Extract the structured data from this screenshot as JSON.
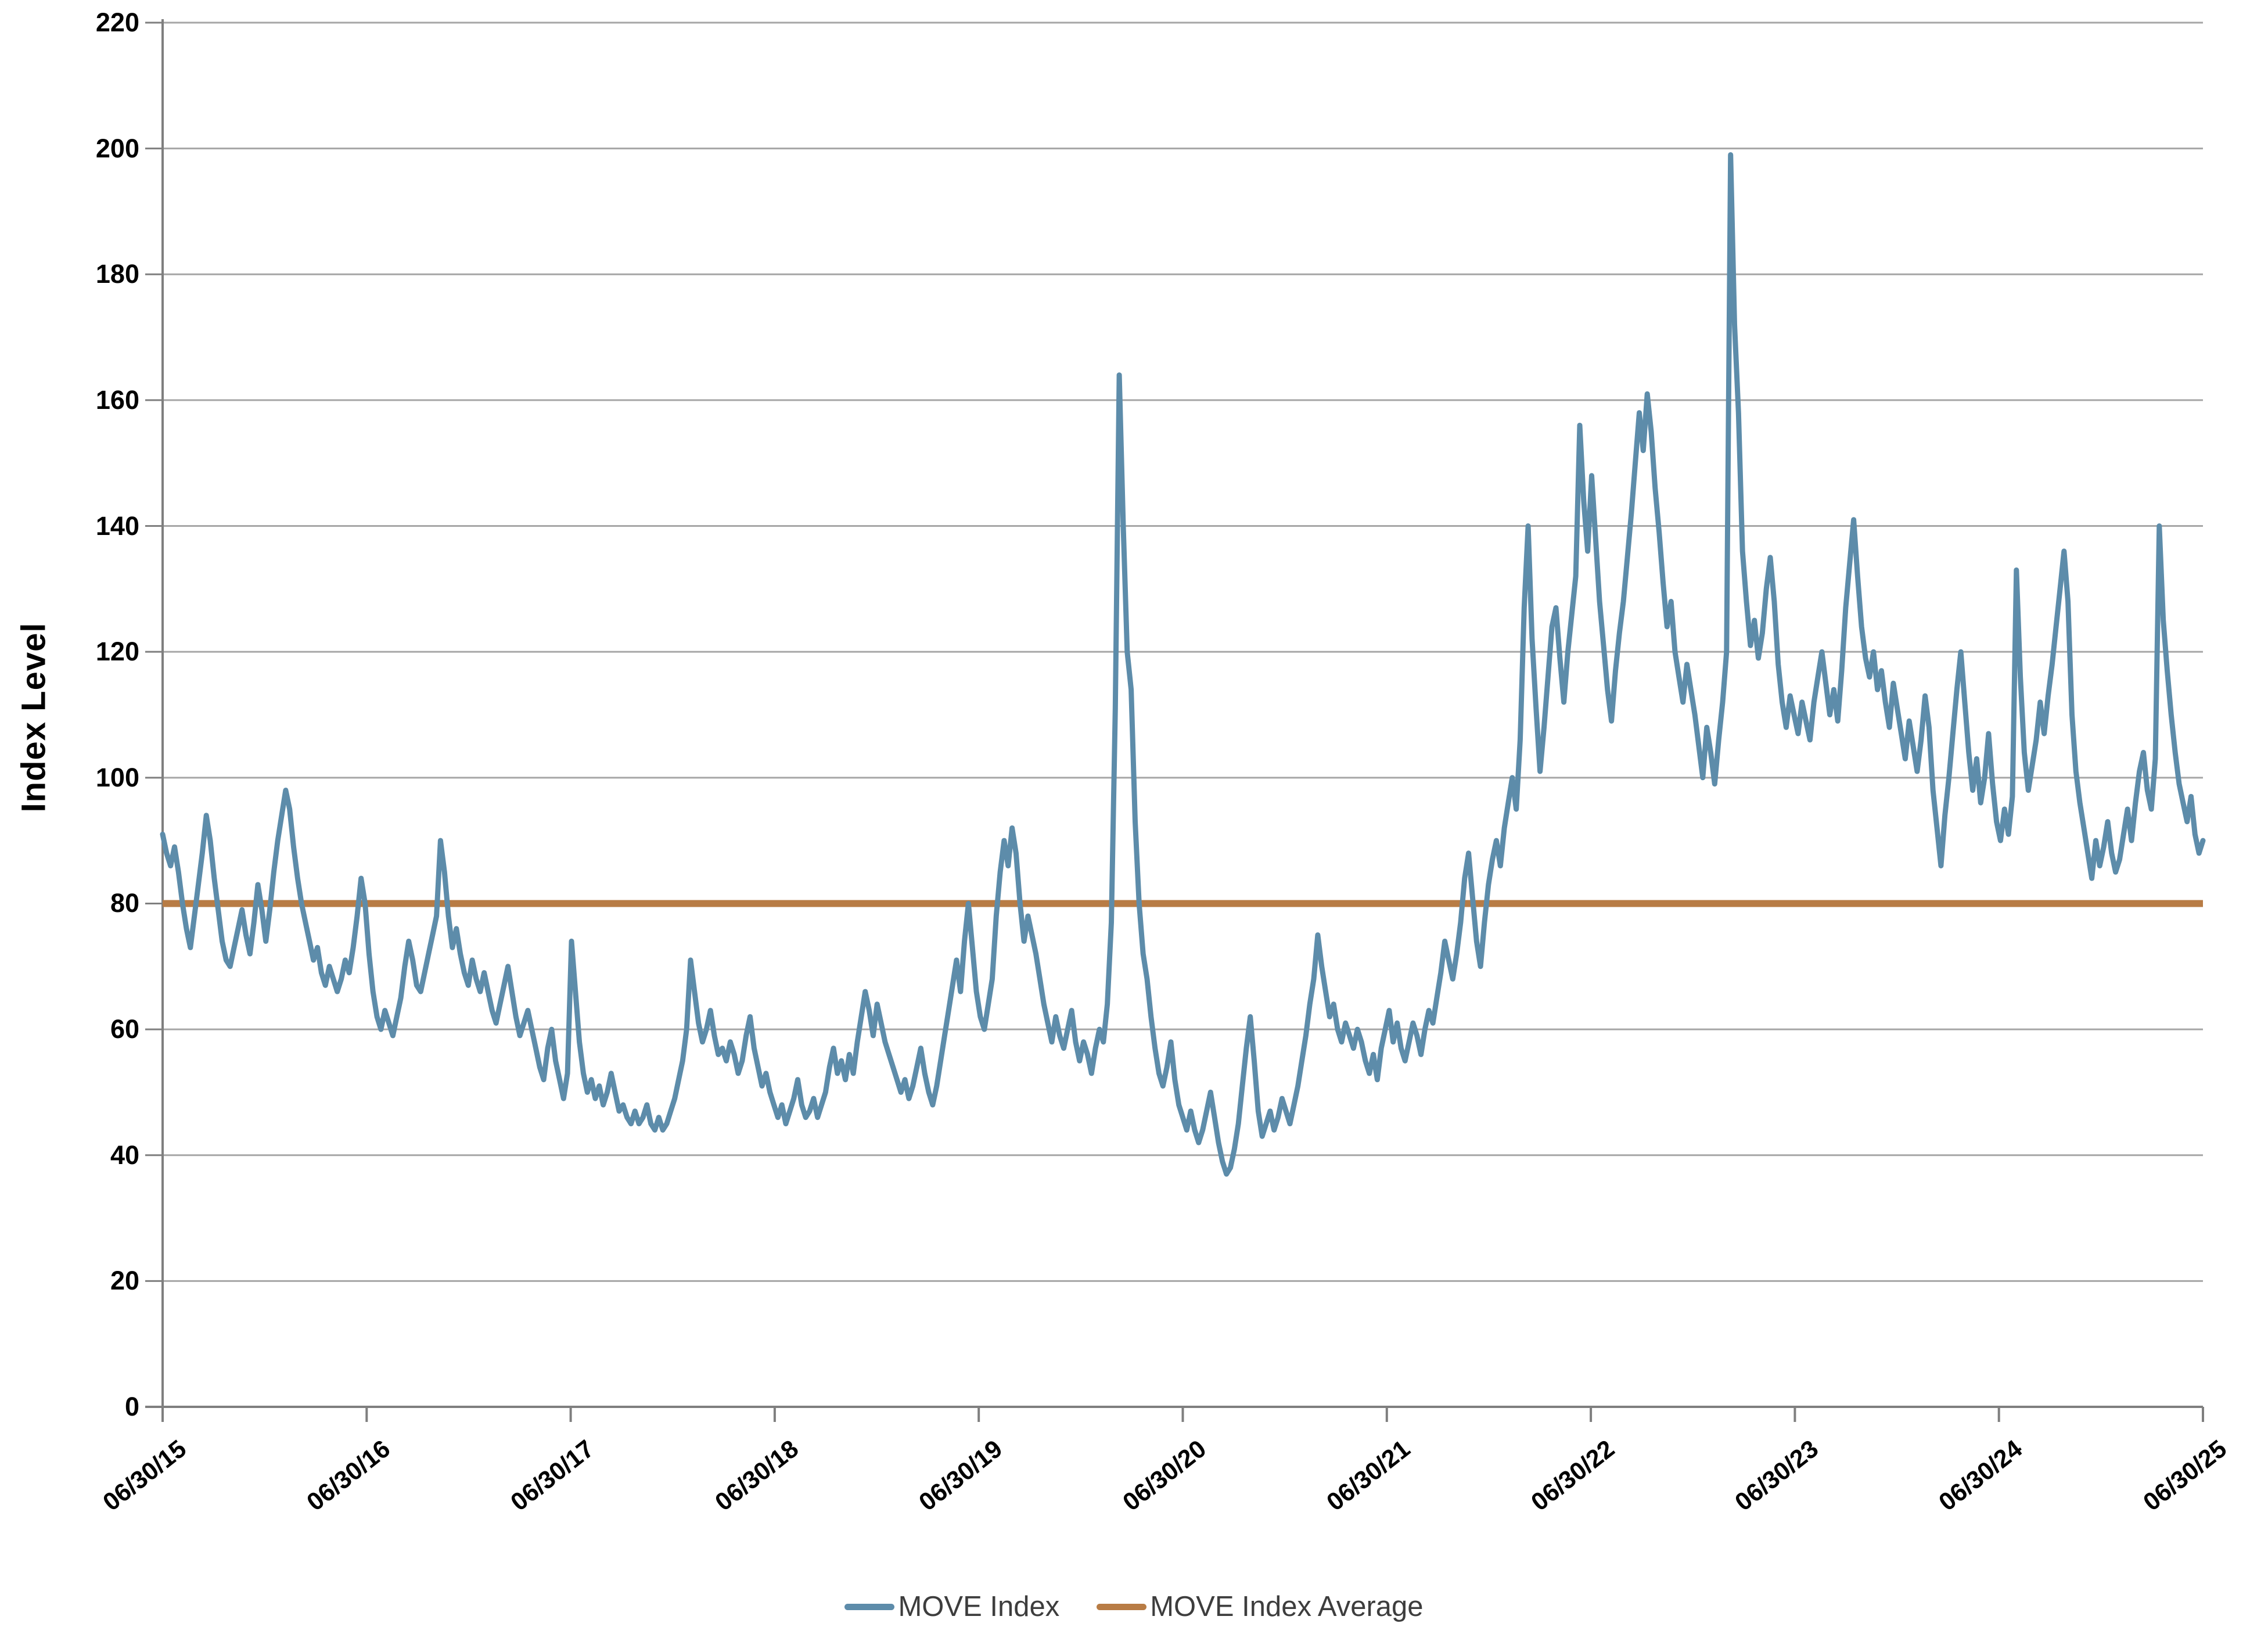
{
  "page": {
    "background": "#ffffff"
  },
  "axis_style": {
    "grid_color": "#a6a6a6",
    "axis_color": "#7f7f7f",
    "tick_color": "#7f7f7f",
    "label_color": "#000000"
  },
  "legend": {
    "items": [
      {
        "label": "MOVE Index",
        "color": "#5d8caa"
      },
      {
        "label": "MOVE Index Average",
        "color": "#b87c45"
      }
    ]
  },
  "chart_data": {
    "type": "line",
    "title": "",
    "xlabel": "",
    "ylabel": "Index Level",
    "ylim": [
      0,
      220
    ],
    "ytick_interval": 20,
    "y_tick_labels": [
      "0",
      "20",
      "40",
      "60",
      "80",
      "100",
      "120",
      "140",
      "160",
      "180",
      "200",
      "220"
    ],
    "x_tick_labels": [
      "06/30/15",
      "06/30/16",
      "06/30/17",
      "06/30/18",
      "06/30/19",
      "06/30/20",
      "06/30/21",
      "06/30/22",
      "06/30/23",
      "06/30/24",
      "06/30/25"
    ],
    "x_frequency": "weekly",
    "grid": "horizontal",
    "legend_position": "bottom",
    "series": [
      {
        "name": "MOVE Index",
        "color": "#5d8caa",
        "stroke_width": 9,
        "values": [
          91,
          88,
          86,
          89,
          85,
          80,
          76,
          73,
          78,
          83,
          88,
          94,
          90,
          84,
          79,
          74,
          71,
          70,
          73,
          76,
          79,
          75,
          72,
          77,
          83,
          79,
          74,
          79,
          85,
          90,
          94,
          98,
          95,
          89,
          84,
          80,
          77,
          74,
          71,
          73,
          69,
          67,
          70,
          68,
          66,
          68,
          71,
          69,
          73,
          78,
          84,
          80,
          72,
          66,
          62,
          60,
          63,
          61,
          59,
          62,
          65,
          70,
          74,
          71,
          67,
          66,
          69,
          72,
          75,
          78,
          90,
          85,
          78,
          73,
          76,
          72,
          69,
          67,
          71,
          68,
          66,
          69,
          66,
          63,
          61,
          64,
          67,
          70,
          66,
          62,
          59,
          61,
          63,
          60,
          57,
          54,
          52,
          57,
          60,
          55,
          52,
          49,
          53,
          74,
          66,
          58,
          53,
          50,
          52,
          49,
          51,
          48,
          50,
          53,
          50,
          47,
          48,
          46,
          45,
          47,
          45,
          46,
          48,
          45,
          44,
          46,
          44,
          45,
          47,
          49,
          52,
          55,
          60,
          71,
          66,
          61,
          58,
          60,
          63,
          59,
          56,
          57,
          55,
          58,
          56,
          53,
          55,
          59,
          62,
          57,
          54,
          51,
          53,
          50,
          48,
          46,
          48,
          45,
          47,
          49,
          52,
          48,
          46,
          47,
          49,
          46,
          48,
          50,
          54,
          57,
          53,
          55,
          52,
          56,
          53,
          58,
          62,
          66,
          63,
          59,
          64,
          61,
          58,
          56,
          54,
          52,
          50,
          52,
          49,
          51,
          54,
          57,
          53,
          50,
          48,
          51,
          55,
          59,
          63,
          67,
          71,
          66,
          74,
          80,
          73,
          66,
          62,
          60,
          64,
          68,
          78,
          85,
          90,
          86,
          92,
          88,
          80,
          74,
          78,
          75,
          72,
          68,
          64,
          61,
          58,
          62,
          59,
          57,
          60,
          63,
          58,
          55,
          58,
          56,
          53,
          57,
          60,
          58,
          64,
          77,
          111,
          164,
          140,
          120,
          114,
          93,
          80,
          72,
          68,
          62,
          57,
          53,
          51,
          54,
          58,
          52,
          48,
          46,
          44,
          47,
          44,
          42,
          44,
          47,
          50,
          46,
          42,
          39,
          37,
          38,
          41,
          45,
          51,
          57,
          62,
          55,
          47,
          43,
          45,
          47,
          44,
          46,
          49,
          47,
          45,
          48,
          51,
          55,
          59,
          64,
          68,
          75,
          70,
          66,
          62,
          64,
          60,
          58,
          61,
          59,
          57,
          60,
          58,
          55,
          53,
          56,
          52,
          57,
          60,
          63,
          58,
          61,
          57,
          55,
          58,
          61,
          59,
          56,
          60,
          63,
          61,
          65,
          69,
          74,
          71,
          68,
          72,
          77,
          84,
          88,
          81,
          74,
          70,
          77,
          83,
          87,
          90,
          86,
          92,
          96,
          100,
          95,
          106,
          127,
          140,
          122,
          111,
          101,
          108,
          116,
          124,
          127,
          119,
          112,
          120,
          126,
          132,
          156,
          144,
          136,
          148,
          138,
          128,
          121,
          114,
          109,
          117,
          123,
          128,
          135,
          142,
          150,
          158,
          152,
          161,
          155,
          146,
          139,
          131,
          124,
          128,
          120,
          116,
          112,
          118,
          114,
          110,
          105,
          100,
          108,
          104,
          99,
          106,
          112,
          120,
          199,
          172,
          158,
          136,
          128,
          121,
          125,
          119,
          123,
          130,
          135,
          128,
          118,
          112,
          108,
          113,
          110,
          107,
          112,
          109,
          106,
          112,
          116,
          120,
          115,
          110,
          114,
          109,
          117,
          127,
          134,
          141,
          132,
          124,
          119,
          116,
          120,
          114,
          117,
          112,
          108,
          115,
          111,
          107,
          103,
          109,
          105,
          101,
          106,
          113,
          108,
          98,
          92,
          86,
          94,
          100,
          107,
          114,
          120,
          112,
          104,
          98,
          103,
          96,
          100,
          107,
          99,
          93,
          90,
          95,
          91,
          97,
          133,
          116,
          104,
          98,
          102,
          106,
          112,
          107,
          113,
          118,
          124,
          130,
          136,
          128,
          110,
          101,
          96,
          92,
          88,
          84,
          90,
          86,
          89,
          93,
          88,
          85,
          87,
          91,
          95,
          90,
          96,
          101,
          104,
          98,
          95,
          103,
          140,
          125,
          117,
          110,
          104,
          99,
          96,
          93,
          97,
          91,
          88,
          90
        ]
      },
      {
        "name": "MOVE Index Average",
        "color": "#b87c45",
        "stroke_width": 12,
        "constant": 80
      }
    ]
  }
}
